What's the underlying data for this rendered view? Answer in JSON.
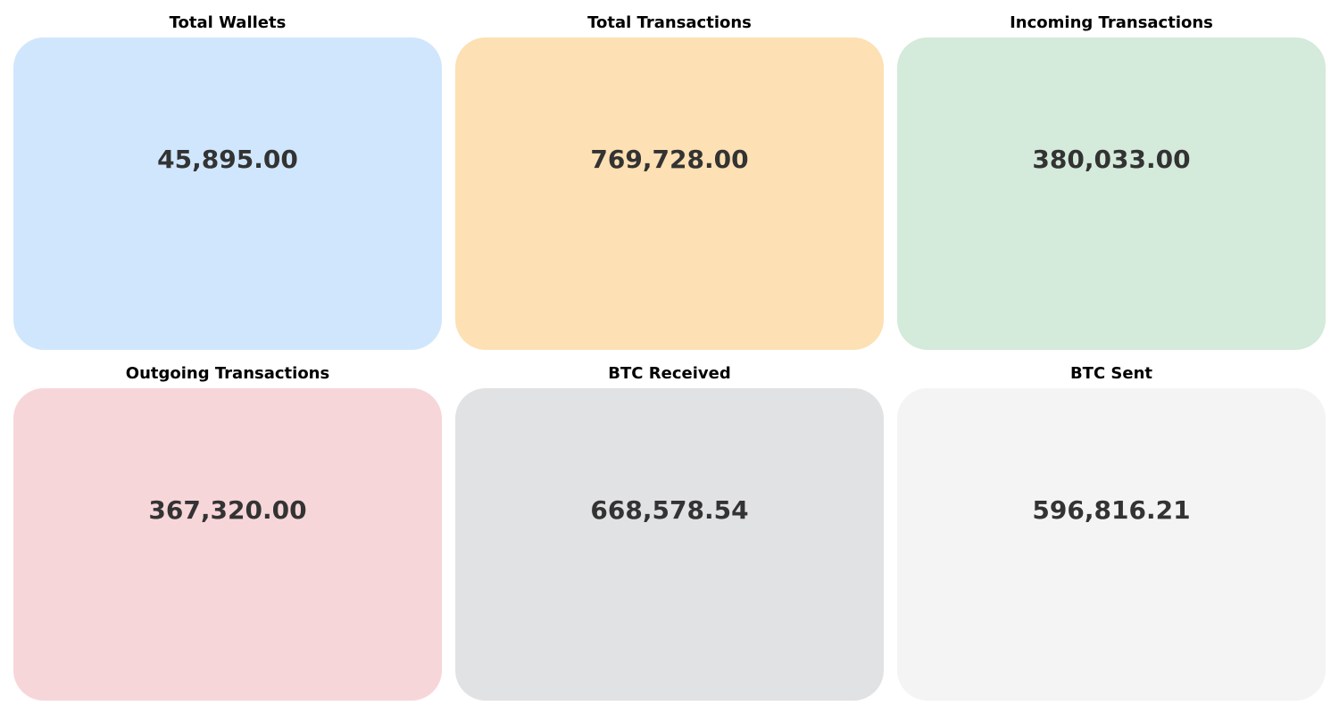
{
  "chart_data": {
    "type": "table",
    "cards": [
      {
        "title": "Total Wallets",
        "value": "45,895.00",
        "color": "#d0e6fd"
      },
      {
        "title": "Total Transactions",
        "value": "769,728.00",
        "color": "#fde0b3"
      },
      {
        "title": "Incoming Transactions",
        "value": "380,033.00",
        "color": "#d4eadb"
      },
      {
        "title": "Outgoing Transactions",
        "value": "367,320.00",
        "color": "#f7d6da"
      },
      {
        "title": "BTC Received",
        "value": "668,578.54",
        "color": "#e1e2e4"
      },
      {
        "title": "BTC Sent",
        "value": "596,816.21",
        "color": "#f4f4f4"
      }
    ]
  }
}
